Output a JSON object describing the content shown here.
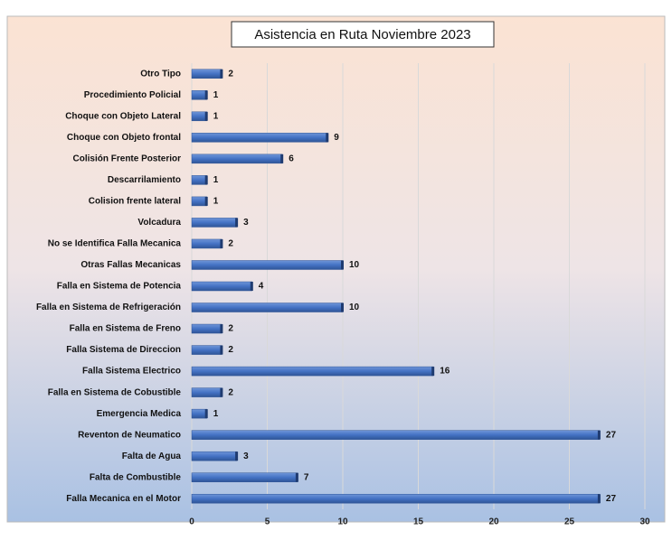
{
  "chart_data": {
    "type": "barh",
    "title": "Asistencia en Ruta Noviembre 2023",
    "categories": [
      "Otro Tipo",
      "Procedimiento Policial",
      "Choque con Objeto Lateral",
      "Choque con Objeto frontal",
      "Colisión Frente Posterior",
      "Descarrilamiento",
      "Colision frente lateral",
      "Volcadura",
      "No se Identifica Falla Mecanica",
      "Otras Fallas Mecanicas",
      "Falla en Sistema de Potencia",
      "Falla en Sistema de Refrigeración",
      "Falla en Sistema de Freno",
      "Falla Sistema de Direccion",
      "Falla Sistema Electrico",
      "Falla en Sistema de Cobustible",
      "Emergencia Medica",
      "Reventon de Neumatico",
      "Falta de Agua",
      "Falta de Combustible",
      "Falla Mecanica en el Motor"
    ],
    "values": [
      2,
      1,
      1,
      9,
      6,
      1,
      1,
      3,
      2,
      10,
      4,
      10,
      2,
      2,
      16,
      2,
      1,
      27,
      3,
      7,
      27
    ],
    "color": "#4472c4",
    "xlim": [
      0,
      30
    ],
    "xticks": [
      0,
      5,
      10,
      15,
      20,
      25,
      30
    ],
    "grid": true
  }
}
